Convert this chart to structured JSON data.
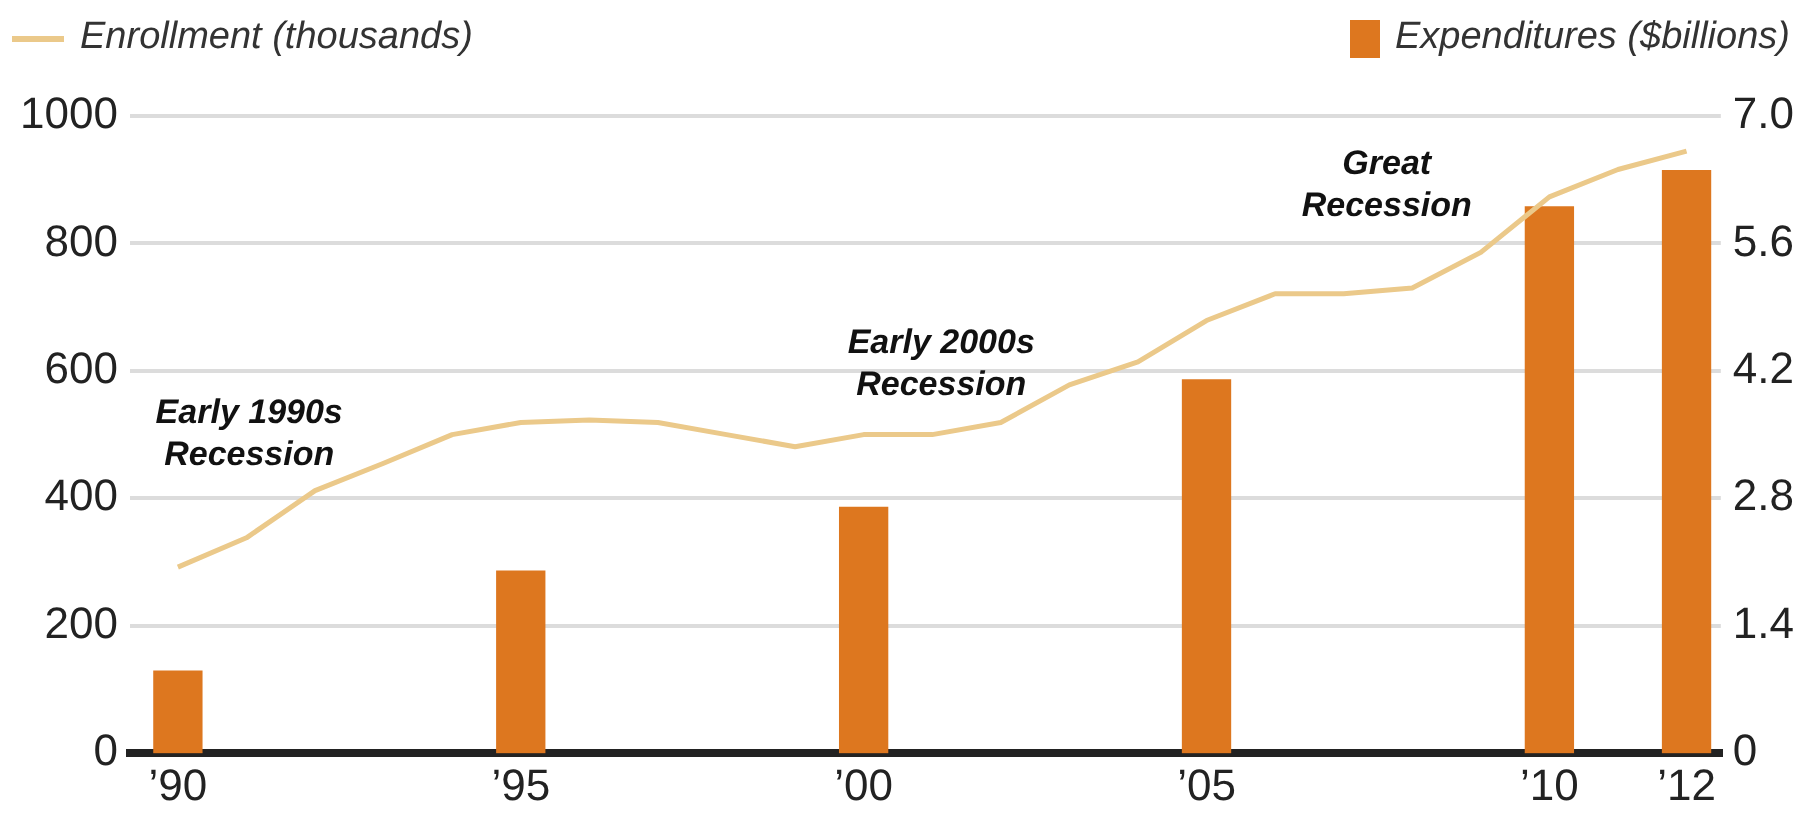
{
  "chart_data": {
    "type": "bar",
    "xlim": [
      1989.3,
      2012.5
    ],
    "xticks": [
      {
        "value": 1990,
        "label": "’90"
      },
      {
        "value": 1995,
        "label": "’95"
      },
      {
        "value": 2000,
        "label": "’00"
      },
      {
        "value": 2005,
        "label": "’05"
      },
      {
        "value": 2010,
        "label": "’10"
      },
      {
        "value": 2012,
        "label": "’12"
      }
    ],
    "ylim": [
      0,
      1000
    ],
    "yticks": [
      0,
      200,
      400,
      600,
      800,
      1000
    ],
    "y2lim": [
      0,
      7
    ],
    "y2ticks": [
      0,
      1.4,
      2.8,
      4.2,
      5.6,
      {
        "value": 7,
        "label": "7.0"
      }
    ],
    "grid": "y",
    "legend": "top",
    "marker": "none",
    "series": [
      {
        "name": "Enrollment (thousands)",
        "type": "line",
        "color": "#ebc98a",
        "x": [
          1990,
          1991,
          1992,
          1993,
          1994,
          1995,
          1996,
          1997,
          1998,
          1999,
          2000,
          2001,
          2002,
          2003,
          2004,
          2005,
          2006,
          2007,
          2008,
          2009,
          2010,
          2011,
          2012
        ],
        "values": [
          292,
          338,
          412,
          455,
          500,
          519,
          523,
          519,
          500,
          481,
          500,
          500,
          519,
          578,
          614,
          679,
          721,
          721,
          730,
          786,
          873,
          916,
          945
        ]
      },
      {
        "name": "Expenditures ($billions)",
        "axis": "y2",
        "color": "#dd771f",
        "x": [
          1990,
          1995,
          2000,
          2005,
          2010,
          2012
        ],
        "values": [
          0.9,
          2.0,
          2.7,
          4.1,
          6.0,
          6.4
        ]
      }
    ],
    "annotations": [
      "Early 1990s\nRecession",
      "Early 2000s\nRecession",
      "Great\nRecession"
    ]
  }
}
